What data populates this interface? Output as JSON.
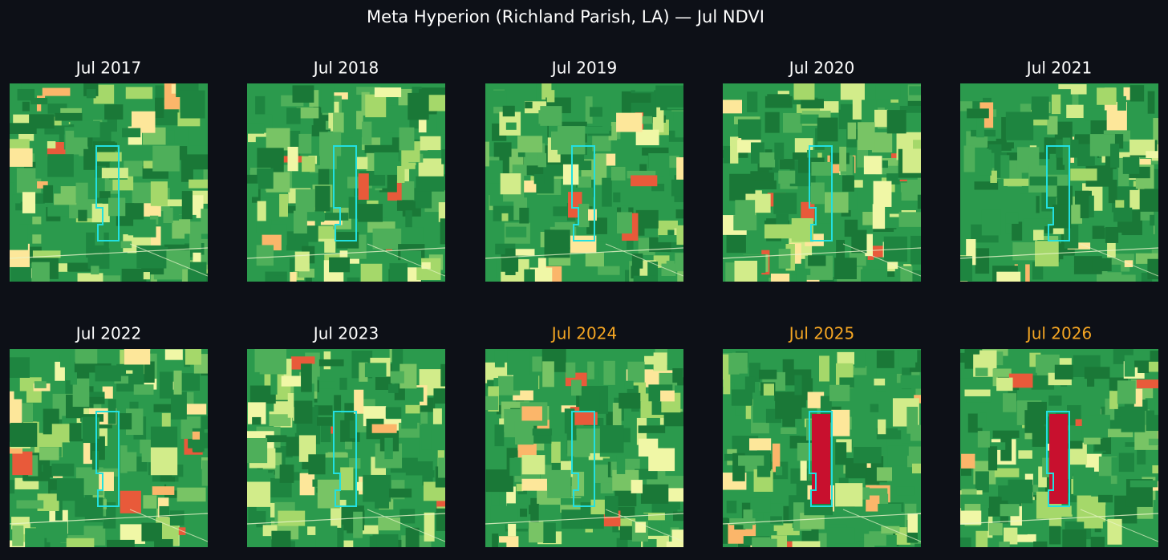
{
  "title": "Meta Hyperion (Richland Parish, LA) — Jul NDVI",
  "panels": [
    {
      "label": "Jul 2017",
      "color": "#ffffff"
    },
    {
      "label": "Jul 2018",
      "color": "#ffffff"
    },
    {
      "label": "Jul 2019",
      "color": "#ffffff"
    },
    {
      "label": "Jul 2020",
      "color": "#ffffff"
    },
    {
      "label": "Jul 2021",
      "color": "#ffffff"
    },
    {
      "label": "Jul 2022",
      "color": "#ffffff"
    },
    {
      "label": "Jul 2023",
      "color": "#ffffff"
    },
    {
      "label": "Jul 2024",
      "color": "#f5a623"
    },
    {
      "label": "Jul 2025",
      "color": "#f5a623"
    },
    {
      "label": "Jul 2026",
      "color": "#f5a623"
    }
  ]
}
